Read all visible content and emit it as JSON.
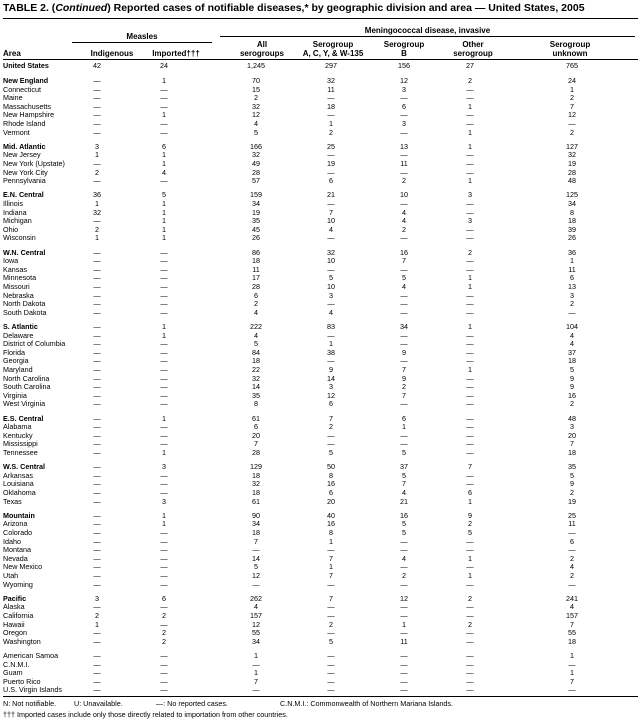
{
  "title": {
    "prefix": "TABLE 2. (",
    "continued": "Continued",
    "rest": ") Reported cases of notifiable diseases,* by geographic division and area — United States, 2005"
  },
  "header": {
    "area": "Area",
    "measles": "Measles",
    "meningococcal": "Meningococcal disease, invasive",
    "columns": [
      {
        "line1": "",
        "line2": "Indigenous"
      },
      {
        "line1": "",
        "line2": "Imported†††"
      },
      {
        "line1": "All",
        "line2": "serogroups"
      },
      {
        "line1": "Serogroup",
        "line2": "A, C, Y, & W-135"
      },
      {
        "line1": "Serogroup",
        "line2": "B"
      },
      {
        "line1": "Other",
        "line2": "serogroup"
      },
      {
        "line1": "Serogroup",
        "line2": "unknown"
      }
    ]
  },
  "groups": [
    {
      "rows": [
        [
          "United States",
          "42",
          "24",
          "1,245",
          "297",
          "156",
          "27",
          "765"
        ]
      ]
    },
    {
      "rows": [
        [
          "New England",
          "—",
          "1",
          "70",
          "32",
          "12",
          "2",
          "24"
        ],
        [
          "Connecticut",
          "—",
          "—",
          "15",
          "11",
          "3",
          "—",
          "1"
        ],
        [
          "Maine",
          "—",
          "—",
          "2",
          "—",
          "—",
          "—",
          "2"
        ],
        [
          "Massachusetts",
          "—",
          "—",
          "32",
          "18",
          "6",
          "1",
          "7"
        ],
        [
          "New Hampshire",
          "—",
          "1",
          "12",
          "—",
          "—",
          "—",
          "12"
        ],
        [
          "Rhode Island",
          "—",
          "—",
          "4",
          "1",
          "3",
          "—",
          "—"
        ],
        [
          "Vermont",
          "—",
          "—",
          "5",
          "2",
          "—",
          "1",
          "2"
        ]
      ]
    },
    {
      "rows": [
        [
          "Mid. Atlantic",
          "3",
          "6",
          "166",
          "25",
          "13",
          "1",
          "127"
        ],
        [
          "New Jersey",
          "1",
          "1",
          "32",
          "—",
          "—",
          "—",
          "32"
        ],
        [
          "New York (Upstate)",
          "—",
          "1",
          "49",
          "19",
          "11",
          "—",
          "19"
        ],
        [
          "New York City",
          "2",
          "4",
          "28",
          "—",
          "—",
          "—",
          "28"
        ],
        [
          "Pennsylvania",
          "—",
          "—",
          "57",
          "6",
          "2",
          "1",
          "48"
        ]
      ]
    },
    {
      "rows": [
        [
          "E.N. Central",
          "36",
          "5",
          "159",
          "21",
          "10",
          "3",
          "125"
        ],
        [
          "Illinois",
          "1",
          "1",
          "34",
          "—",
          "—",
          "—",
          "34"
        ],
        [
          "Indiana",
          "32",
          "1",
          "19",
          "7",
          "4",
          "—",
          "8"
        ],
        [
          "Michigan",
          "—",
          "1",
          "35",
          "10",
          "4",
          "3",
          "18"
        ],
        [
          "Ohio",
          "2",
          "1",
          "45",
          "4",
          "2",
          "—",
          "39"
        ],
        [
          "Wisconsin",
          "1",
          "1",
          "26",
          "—",
          "—",
          "—",
          "26"
        ]
      ]
    },
    {
      "rows": [
        [
          "W.N. Central",
          "—",
          "—",
          "86",
          "32",
          "16",
          "2",
          "36"
        ],
        [
          "Iowa",
          "—",
          "—",
          "18",
          "10",
          "7",
          "—",
          "1"
        ],
        [
          "Kansas",
          "—",
          "—",
          "11",
          "—",
          "—",
          "—",
          "11"
        ],
        [
          "Minnesota",
          "—",
          "—",
          "17",
          "5",
          "5",
          "1",
          "6"
        ],
        [
          "Missouri",
          "—",
          "—",
          "28",
          "10",
          "4",
          "1",
          "13"
        ],
        [
          "Nebraska",
          "—",
          "—",
          "6",
          "3",
          "—",
          "—",
          "3"
        ],
        [
          "North Dakota",
          "—",
          "—",
          "2",
          "—",
          "—",
          "—",
          "2"
        ],
        [
          "South Dakota",
          "—",
          "—",
          "4",
          "4",
          "—",
          "—",
          "—"
        ]
      ]
    },
    {
      "rows": [
        [
          "S. Atlantic",
          "—",
          "1",
          "222",
          "83",
          "34",
          "1",
          "104"
        ],
        [
          "Delaware",
          "—",
          "1",
          "4",
          "—",
          "—",
          "—",
          "4"
        ],
        [
          "District of Columbia",
          "—",
          "—",
          "5",
          "1",
          "—",
          "—",
          "4"
        ],
        [
          "Florida",
          "—",
          "—",
          "84",
          "38",
          "9",
          "—",
          "37"
        ],
        [
          "Georgia",
          "—",
          "—",
          "18",
          "—",
          "—",
          "—",
          "18"
        ],
        [
          "Maryland",
          "—",
          "—",
          "22",
          "9",
          "7",
          "1",
          "5"
        ],
        [
          "North Carolina",
          "—",
          "—",
          "32",
          "14",
          "9",
          "—",
          "9"
        ],
        [
          "South Carolina",
          "—",
          "—",
          "14",
          "3",
          "2",
          "—",
          "9"
        ],
        [
          "Virginia",
          "—",
          "—",
          "35",
          "12",
          "7",
          "—",
          "16"
        ],
        [
          "West Virginia",
          "—",
          "—",
          "8",
          "6",
          "—",
          "—",
          "2"
        ]
      ]
    },
    {
      "rows": [
        [
          "E.S. Central",
          "—",
          "1",
          "61",
          "7",
          "6",
          "—",
          "48"
        ],
        [
          "Alabama",
          "—",
          "—",
          "6",
          "2",
          "1",
          "—",
          "3"
        ],
        [
          "Kentucky",
          "—",
          "—",
          "20",
          "—",
          "—",
          "—",
          "20"
        ],
        [
          "Mississippi",
          "—",
          "—",
          "7",
          "—",
          "—",
          "—",
          "7"
        ],
        [
          "Tennessee",
          "—",
          "1",
          "28",
          "5",
          "5",
          "—",
          "18"
        ]
      ]
    },
    {
      "rows": [
        [
          "W.S. Central",
          "—",
          "3",
          "129",
          "50",
          "37",
          "7",
          "35"
        ],
        [
          "Arkansas",
          "—",
          "—",
          "18",
          "8",
          "5",
          "—",
          "5"
        ],
        [
          "Louisiana",
          "—",
          "—",
          "32",
          "16",
          "7",
          "—",
          "9"
        ],
        [
          "Oklahoma",
          "—",
          "—",
          "18",
          "6",
          "4",
          "6",
          "2"
        ],
        [
          "Texas",
          "—",
          "3",
          "61",
          "20",
          "21",
          "1",
          "19"
        ]
      ]
    },
    {
      "rows": [
        [
          "Mountain",
          "—",
          "1",
          "90",
          "40",
          "16",
          "9",
          "25"
        ],
        [
          "Arizona",
          "—",
          "1",
          "34",
          "16",
          "5",
          "2",
          "11"
        ],
        [
          "Colorado",
          "—",
          "—",
          "18",
          "8",
          "5",
          "5",
          "—"
        ],
        [
          "Idaho",
          "—",
          "—",
          "7",
          "1",
          "—",
          "—",
          "6"
        ],
        [
          "Montana",
          "—",
          "—",
          "—",
          "—",
          "—",
          "—",
          "—"
        ],
        [
          "Nevada",
          "—",
          "—",
          "14",
          "7",
          "4",
          "1",
          "2"
        ],
        [
          "New Mexico",
          "—",
          "—",
          "5",
          "1",
          "—",
          "—",
          "4"
        ],
        [
          "Utah",
          "—",
          "—",
          "12",
          "7",
          "2",
          "1",
          "2"
        ],
        [
          "Wyoming",
          "—",
          "—",
          "—",
          "—",
          "—",
          "—",
          "—"
        ]
      ]
    },
    {
      "rows": [
        [
          "Pacific",
          "3",
          "6",
          "262",
          "7",
          "12",
          "2",
          "241"
        ],
        [
          "Alaska",
          "—",
          "—",
          "4",
          "—",
          "—",
          "—",
          "4"
        ],
        [
          "California",
          "2",
          "2",
          "157",
          "—",
          "—",
          "—",
          "157"
        ],
        [
          "Hawaii",
          "1",
          "—",
          "12",
          "2",
          "1",
          "2",
          "7"
        ],
        [
          "Oregon",
          "—",
          "2",
          "55",
          "—",
          "—",
          "—",
          "55"
        ],
        [
          "Washington",
          "—",
          "2",
          "34",
          "5",
          "11",
          "—",
          "18"
        ]
      ]
    },
    {
      "territories": true,
      "rows": [
        [
          "American Samoa",
          "—",
          "—",
          "1",
          "—",
          "—",
          "—",
          "1"
        ],
        [
          "C.N.M.I.",
          "—",
          "—",
          "—",
          "—",
          "—",
          "—",
          "—"
        ],
        [
          "Guam",
          "—",
          "—",
          "1",
          "—",
          "—",
          "—",
          "1"
        ],
        [
          "Puerto Rico",
          "—",
          "—",
          "7",
          "—",
          "—",
          "—",
          "7"
        ],
        [
          "U.S. Virgin Islands",
          "—",
          "—",
          "—",
          "—",
          "—",
          "—",
          "—"
        ]
      ]
    }
  ],
  "footnotes": {
    "n": "N: Not notifiable.",
    "u": "U: Unavailable.",
    "dash": "—: No reported cases.",
    "cnmi": "C.N.M.I.: Commonwealth of Northern Mariana Islands.",
    "daggers": "††† Imported cases include only those directly related to importation from other countries."
  }
}
